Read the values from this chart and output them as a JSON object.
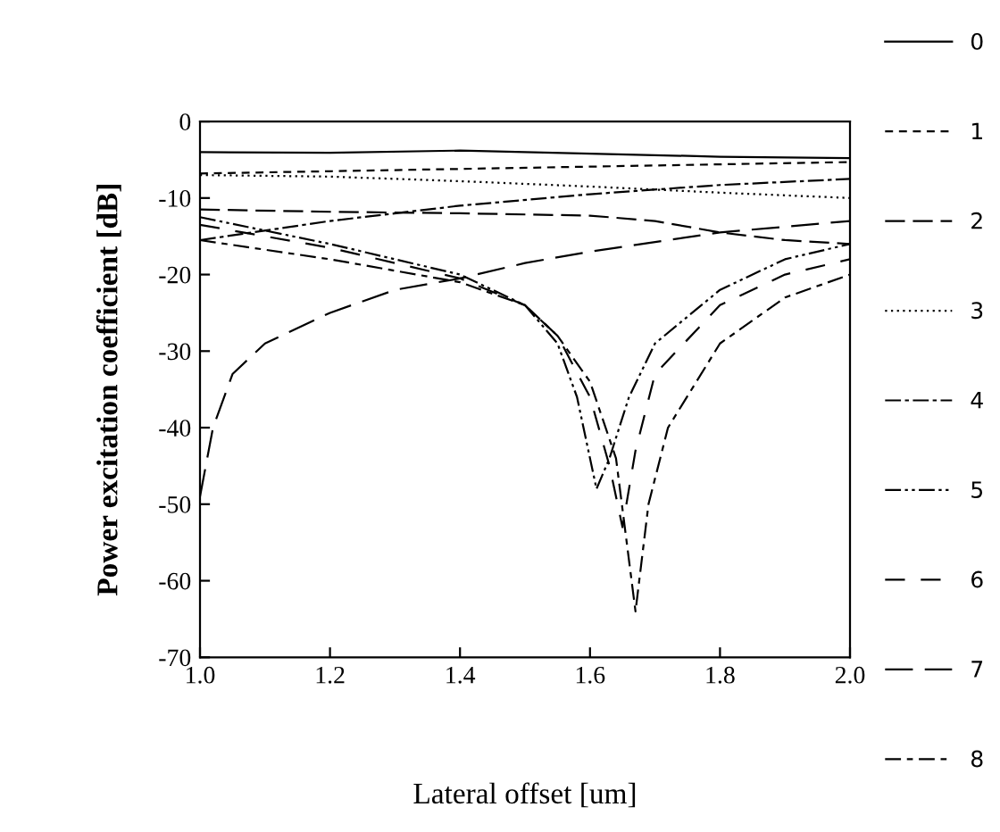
{
  "chart_data": {
    "type": "line",
    "xlabel": "Lateral offset [um]",
    "ylabel": "Power excitation coefficient [dB]",
    "xlim": [
      1.0,
      2.0
    ],
    "ylim": [
      -70,
      0
    ],
    "xticks": [
      {
        "value": 1.0,
        "label": "1.0"
      },
      {
        "value": 1.2,
        "label": "1.2"
      },
      {
        "value": 1.4,
        "label": "1.4"
      },
      {
        "value": 1.6,
        "label": "1.6"
      },
      {
        "value": 1.8,
        "label": "1.8"
      },
      {
        "value": 2.0,
        "label": "2.0"
      }
    ],
    "yticks": [
      0,
      -10,
      -20,
      -30,
      -40,
      -50,
      -60,
      -70
    ],
    "grid": false,
    "legend": "right",
    "marker": "none",
    "series": [
      {
        "name": "0",
        "color": "#000000",
        "line_style": "solid",
        "x": [
          1.0,
          1.2,
          1.4,
          1.6,
          1.8,
          2.0
        ],
        "values": [
          -4,
          -4.1,
          -3.8,
          -4.2,
          -4.6,
          -4.8
        ]
      },
      {
        "name": "1",
        "color": "#000000",
        "line_style": "dashed",
        "x": [
          1.0,
          1.2,
          1.4,
          1.6,
          1.8,
          2.0
        ],
        "values": [
          -6.8,
          -6.5,
          -6.2,
          -5.9,
          -5.6,
          -5.3
        ]
      },
      {
        "name": "2",
        "color": "#000000",
        "line_style": "dashed",
        "x": [
          1.0,
          1.2,
          1.4,
          1.6,
          1.7,
          1.8,
          1.9,
          2.0
        ],
        "values": [
          -11.5,
          -11.8,
          -12,
          -12.3,
          -13,
          -14.5,
          -15.5,
          -16
        ]
      },
      {
        "name": "3",
        "color": "#000000",
        "line_style": "dotted",
        "x": [
          1.0,
          1.2,
          1.4,
          1.6,
          1.8,
          2.0
        ],
        "values": [
          -7,
          -7.2,
          -7.8,
          -8.5,
          -9.3,
          -10
        ]
      },
      {
        "name": "4",
        "color": "#000000",
        "line_style": "dashed",
        "x": [
          1.0,
          1.2,
          1.4,
          1.6,
          1.8,
          2.0
        ],
        "values": [
          -15.5,
          -13,
          -11,
          -9.5,
          -8.3,
          -7.5
        ]
      },
      {
        "name": "5",
        "color": "#000000",
        "line_style": "dashed",
        "x": [
          1.0,
          1.2,
          1.4,
          1.5,
          1.55,
          1.58,
          1.61,
          1.63,
          1.66,
          1.7,
          1.8,
          1.9,
          2.0
        ],
        "values": [
          -12.5,
          -16,
          -20,
          -24,
          -29,
          -36,
          -48,
          -44,
          -36,
          -29,
          -22,
          -18,
          -16
        ]
      },
      {
        "name": "6",
        "color": "#000000",
        "line_style": "dashed",
        "x": [
          1.0,
          1.2,
          1.4,
          1.5,
          1.55,
          1.6,
          1.63,
          1.65,
          1.67,
          1.7,
          1.8,
          1.9,
          2.0
        ],
        "values": [
          -13.5,
          -16.5,
          -20.5,
          -24,
          -28,
          -36,
          -45,
          -53,
          -43,
          -33,
          -24,
          -20,
          -18
        ]
      },
      {
        "name": "7",
        "color": "#000000",
        "line_style": "dashed",
        "x": [
          1.0,
          1.02,
          1.05,
          1.1,
          1.2,
          1.3,
          1.4,
          1.5,
          1.6,
          1.8,
          2.0
        ],
        "values": [
          -49,
          -40,
          -33,
          -29,
          -25,
          -22,
          -20.5,
          -18.5,
          -17,
          -14.5,
          -13
        ]
      },
      {
        "name": "8",
        "color": "#000000",
        "line_style": "dashed",
        "x": [
          1.0,
          1.2,
          1.4,
          1.5,
          1.55,
          1.6,
          1.64,
          1.67,
          1.69,
          1.72,
          1.8,
          1.9,
          2.0
        ],
        "values": [
          -15.5,
          -18,
          -21,
          -24,
          -28,
          -34,
          -44,
          -64,
          -50,
          -40,
          -29,
          -23,
          -20
        ]
      }
    ]
  }
}
